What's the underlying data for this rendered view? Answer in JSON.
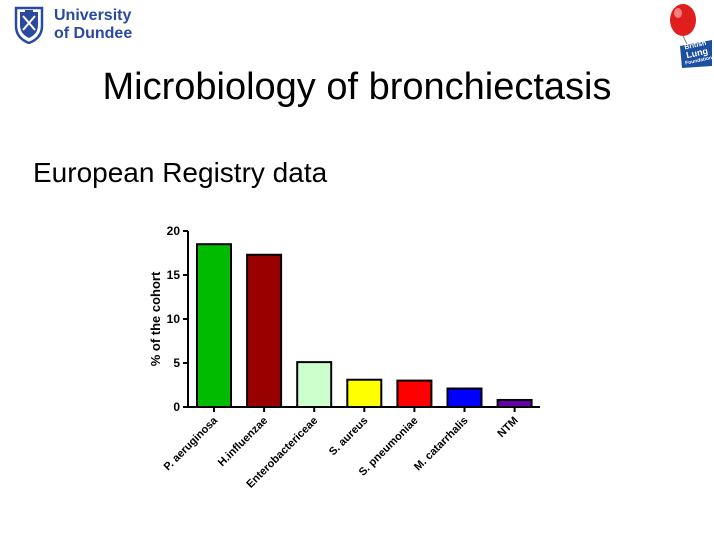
{
  "header": {
    "university_logo": {
      "line1": "University",
      "line2": "of Dundee",
      "color": "#2a4aa0"
    },
    "foundation_logo": {
      "line1": "British",
      "line2": "Lung",
      "line3": "Foundation",
      "badge_color": "#1c4fa0",
      "balloon_color": "#e01e1e"
    }
  },
  "slide": {
    "title": "Microbiology of bronchiectasis",
    "subtitle": "European Registry data"
  },
  "chart_data": {
    "type": "bar",
    "title": "",
    "xlabel": "",
    "ylabel": "% of the cohort",
    "ylim": [
      0,
      20
    ],
    "yticks": [
      0,
      5,
      10,
      15,
      20
    ],
    "grid": false,
    "categories": [
      "P. aeruginosa",
      "H.influenzae",
      "Enterobactericeae",
      "S. aureus",
      "S. pneumoniae",
      "M. catarrhalis",
      "NTM"
    ],
    "values": [
      18.5,
      17.3,
      5.1,
      3.1,
      3.0,
      2.1,
      0.8
    ],
    "colors": [
      "#00bb00",
      "#990000",
      "#ccffcc",
      "#ffff00",
      "#ff0000",
      "#0000ff",
      "#6600aa"
    ]
  }
}
